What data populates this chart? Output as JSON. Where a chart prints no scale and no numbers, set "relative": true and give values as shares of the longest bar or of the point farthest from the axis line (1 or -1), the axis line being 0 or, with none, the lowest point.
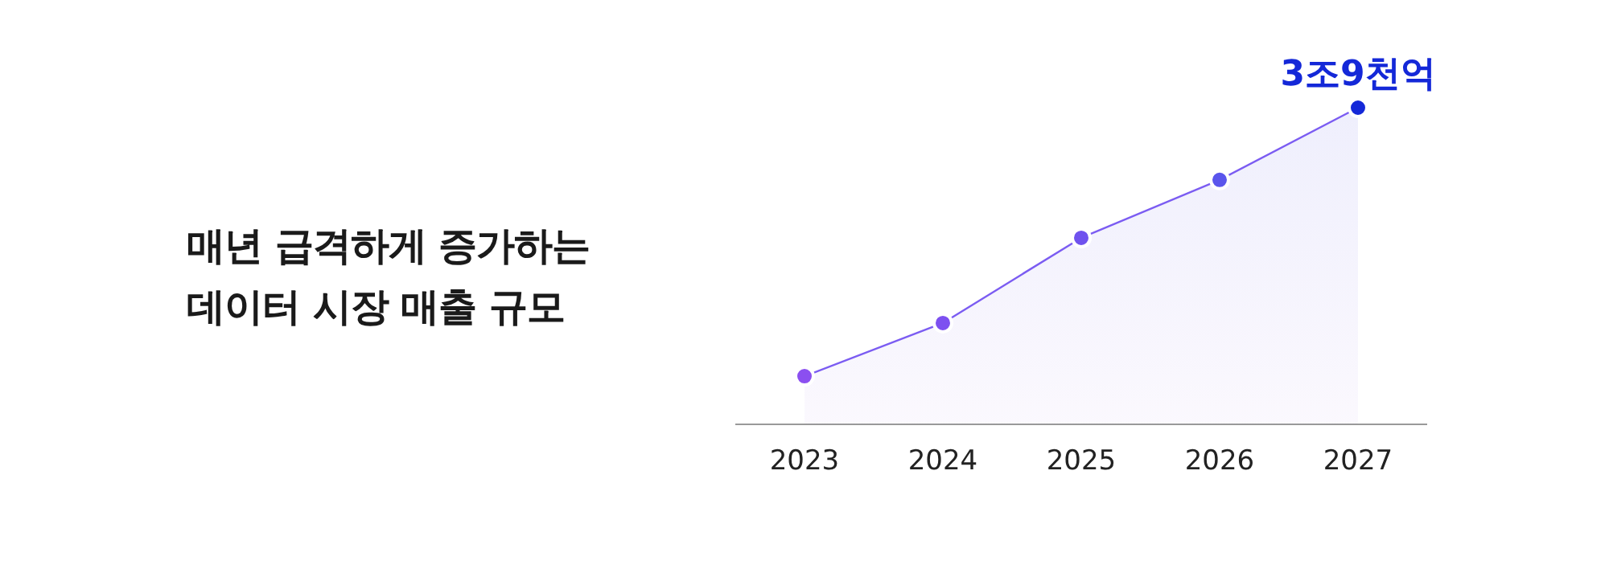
{
  "chart_data": {
    "type": "area",
    "title": "매년 급격하게 증가하는\n데이터 시장 매출 규모",
    "categories": [
      "2023",
      "2024",
      "2025",
      "2026",
      "2027"
    ],
    "relative": true,
    "series": [
      {
        "color": "#7b5cf2",
        "colors": [
          "#8b4ff0",
          "#7d50f0",
          "#6f52ee",
          "#5a55ec",
          "#1428d8"
        ],
        "values": [
          0.152,
          0.32,
          0.589,
          0.772,
          1
        ]
      }
    ],
    "annotations": [
      {
        "text": "3조9천억",
        "x": "2027",
        "y": 1
      }
    ],
    "marker": "circle",
    "grid": false,
    "legend": false
  }
}
